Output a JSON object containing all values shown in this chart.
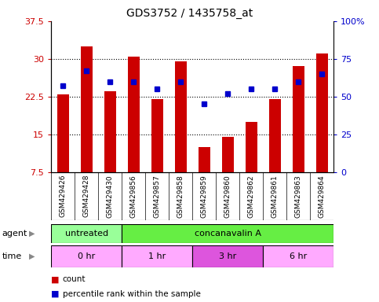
{
  "title": "GDS3752 / 1435758_at",
  "samples": [
    "GSM429426",
    "GSM429428",
    "GSM429430",
    "GSM429856",
    "GSM429857",
    "GSM429858",
    "GSM429859",
    "GSM429860",
    "GSM429862",
    "GSM429861",
    "GSM429863",
    "GSM429864"
  ],
  "counts": [
    23.0,
    32.5,
    23.5,
    30.5,
    22.0,
    29.5,
    12.5,
    14.5,
    17.5,
    22.0,
    28.5,
    31.0
  ],
  "percentile_ranks": [
    57,
    67,
    60,
    60,
    55,
    60,
    45,
    52,
    55,
    55,
    60,
    65
  ],
  "ylim_left": [
    7.5,
    37.5
  ],
  "ylim_right": [
    0,
    100
  ],
  "yticks_left": [
    7.5,
    15,
    22.5,
    30,
    37.5
  ],
  "yticks_left_labels": [
    "7.5",
    "15",
    "22.5",
    "30",
    "37.5"
  ],
  "yticks_right": [
    0,
    25,
    50,
    75,
    100
  ],
  "yticks_right_labels": [
    "0",
    "25",
    "50",
    "75",
    "100%"
  ],
  "bar_color": "#cc0000",
  "dot_color": "#0000cc",
  "dot_marker": "s",
  "dot_size": 4,
  "bar_width": 0.5,
  "agent_groups": [
    {
      "label": "untreated",
      "start": 0,
      "end": 3,
      "color": "#99ff99"
    },
    {
      "label": "concanavalin A",
      "start": 3,
      "end": 12,
      "color": "#66ee44"
    }
  ],
  "time_groups": [
    {
      "label": "0 hr",
      "start": 0,
      "end": 3,
      "color": "#ffaaff"
    },
    {
      "label": "1 hr",
      "start": 3,
      "end": 6,
      "color": "#ffaaff"
    },
    {
      "label": "3 hr",
      "start": 6,
      "end": 9,
      "color": "#dd55dd"
    },
    {
      "label": "6 hr",
      "start": 9,
      "end": 12,
      "color": "#ffaaff"
    }
  ],
  "legend_items": [
    {
      "label": "count",
      "color": "#cc0000"
    },
    {
      "label": "percentile rank within the sample",
      "color": "#0000cc"
    }
  ],
  "background_color": "#ffffff",
  "plot_bg_color": "#ffffff",
  "tick_label_color_left": "#cc0000",
  "tick_label_color_right": "#0000cc",
  "hline_color": "#000000",
  "hline_style": "dotted",
  "separator_color": "#888888",
  "xticklabel_bg": "#dddddd"
}
